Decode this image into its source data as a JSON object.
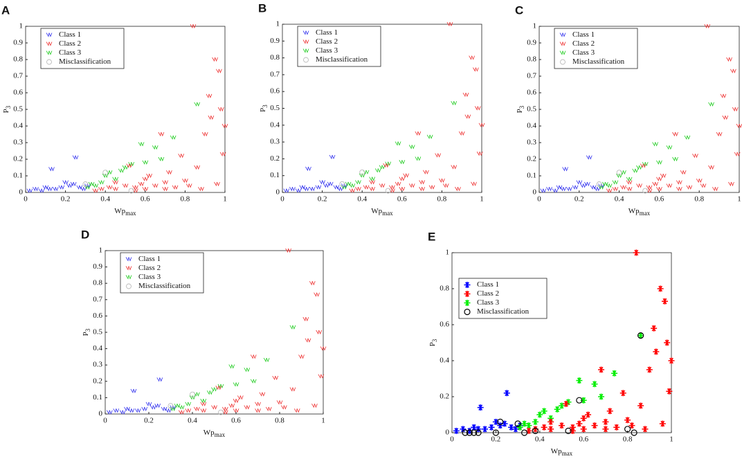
{
  "chart_data": [
    {
      "type": "scatter",
      "panel": "A",
      "xlabel": "Wp",
      "xlabel_sub": "max",
      "ylabel": "P",
      "ylabel_sub": "3",
      "marker": "check",
      "legend": "upper left",
      "xlim": [
        0,
        1
      ],
      "ylim": [
        0,
        1
      ],
      "xticks": [
        0,
        0.2,
        0.4,
        0.6,
        0.8,
        1
      ],
      "yticks": [
        0,
        0.1,
        0.2,
        0.3,
        0.4,
        0.5,
        0.6,
        0.7,
        0.8,
        0.9,
        1
      ],
      "series": [
        {
          "name": "Class 1",
          "color": "#3333ee",
          "x": [
            0.02,
            0.05,
            0.08,
            0.1,
            0.13,
            0.15,
            0.18,
            0.2,
            0.22,
            0.24,
            0.25,
            0.27,
            0.29,
            0.31,
            0.12
          ],
          "values": [
            0.01,
            0.02,
            0.01,
            0.03,
            0.14,
            0.02,
            0.03,
            0.06,
            0.04,
            0.05,
            0.21,
            0.03,
            0.02,
            0.04,
            0.02
          ]
        },
        {
          "name": "Class 2",
          "color": "#ee3333",
          "x": [
            0.35,
            0.38,
            0.42,
            0.45,
            0.5,
            0.52,
            0.55,
            0.58,
            0.6,
            0.62,
            0.65,
            0.68,
            0.7,
            0.72,
            0.75,
            0.78,
            0.8,
            0.82,
            0.84,
            0.86,
            0.88,
            0.9,
            0.92,
            0.93,
            0.95,
            0.97,
            0.98,
            1.0,
            0.99,
            0.96,
            0.7,
            0.6,
            0.45,
            0.55
          ],
          "values": [
            0.01,
            0.02,
            0.03,
            0.02,
            0.04,
            0.16,
            0.03,
            0.05,
            0.02,
            0.1,
            0.04,
            0.35,
            0.06,
            0.12,
            0.03,
            0.22,
            0.07,
            0.04,
            1.0,
            0.15,
            0.02,
            0.35,
            0.58,
            0.45,
            0.8,
            0.73,
            0.5,
            0.4,
            0.23,
            0.05,
            0.02,
            0.08,
            0.06,
            0.01
          ]
        },
        {
          "name": "Class 3",
          "color": "#22cc22",
          "x": [
            0.31,
            0.33,
            0.35,
            0.38,
            0.4,
            0.42,
            0.45,
            0.48,
            0.5,
            0.53,
            0.58,
            0.6,
            0.65,
            0.68,
            0.74,
            0.86
          ],
          "values": [
            0.03,
            0.05,
            0.04,
            0.06,
            0.1,
            0.12,
            0.08,
            0.13,
            0.15,
            0.17,
            0.29,
            0.18,
            0.27,
            0.2,
            0.33,
            0.53
          ]
        },
        {
          "name": "Misclassification",
          "color": "#bbbbbb",
          "x": [
            0.3,
            0.4,
            0.53
          ],
          "values": [
            0.05,
            0.12,
            0.01
          ]
        }
      ]
    },
    {
      "type": "scatter",
      "panel": "B",
      "xlabel": "Wp",
      "xlabel_sub": "max",
      "ylabel": "P",
      "ylabel_sub": "3",
      "marker": "check",
      "legend": "upper left",
      "xlim": [
        0,
        1
      ],
      "ylim": [
        0,
        1
      ],
      "xticks": [
        0,
        0.2,
        0.4,
        0.6,
        0.8,
        1
      ],
      "yticks": [
        0,
        0.1,
        0.2,
        0.3,
        0.4,
        0.5,
        0.6,
        0.7,
        0.8,
        0.9,
        1
      ],
      "series": [
        {
          "name": "Class 1",
          "color": "#3333ee",
          "x": [
            0.02,
            0.05,
            0.08,
            0.1,
            0.13,
            0.15,
            0.18,
            0.2,
            0.22,
            0.24,
            0.25,
            0.27,
            0.29,
            0.31,
            0.12
          ],
          "values": [
            0.01,
            0.02,
            0.01,
            0.03,
            0.14,
            0.02,
            0.03,
            0.06,
            0.04,
            0.05,
            0.21,
            0.03,
            0.02,
            0.04,
            0.02
          ]
        },
        {
          "name": "Class 2",
          "color": "#ee3333",
          "x": [
            0.35,
            0.38,
            0.42,
            0.45,
            0.5,
            0.52,
            0.55,
            0.58,
            0.6,
            0.62,
            0.65,
            0.68,
            0.7,
            0.72,
            0.75,
            0.78,
            0.8,
            0.82,
            0.84,
            0.86,
            0.88,
            0.9,
            0.92,
            0.93,
            0.95,
            0.97,
            0.98,
            1.0,
            0.99,
            0.96,
            0.7,
            0.6,
            0.45,
            0.55
          ],
          "values": [
            0.01,
            0.02,
            0.03,
            0.02,
            0.04,
            0.16,
            0.03,
            0.05,
            0.02,
            0.1,
            0.04,
            0.35,
            0.06,
            0.12,
            0.03,
            0.22,
            0.07,
            0.04,
            1.0,
            0.15,
            0.02,
            0.35,
            0.58,
            0.45,
            0.8,
            0.73,
            0.5,
            0.4,
            0.23,
            0.05,
            0.02,
            0.08,
            0.06,
            0.01
          ]
        },
        {
          "name": "Class 3",
          "color": "#22cc22",
          "x": [
            0.31,
            0.33,
            0.35,
            0.38,
            0.4,
            0.42,
            0.45,
            0.48,
            0.5,
            0.53,
            0.58,
            0.6,
            0.65,
            0.68,
            0.74,
            0.86
          ],
          "values": [
            0.03,
            0.05,
            0.04,
            0.06,
            0.1,
            0.12,
            0.08,
            0.13,
            0.15,
            0.17,
            0.29,
            0.18,
            0.27,
            0.2,
            0.33,
            0.53
          ]
        },
        {
          "name": "Misclassification",
          "color": "#bbbbbb",
          "x": [
            0.3,
            0.4,
            0.53
          ],
          "values": [
            0.05,
            0.12,
            0.01
          ]
        }
      ]
    },
    {
      "type": "scatter",
      "panel": "C",
      "xlabel": "Wp",
      "xlabel_sub": "max",
      "ylabel": "P",
      "ylabel_sub": "3",
      "marker": "check",
      "legend": "upper left",
      "xlim": [
        0,
        1
      ],
      "ylim": [
        0,
        1
      ],
      "xticks": [
        0,
        0.2,
        0.4,
        0.6,
        0.8,
        1
      ],
      "yticks": [
        0,
        0.1,
        0.2,
        0.3,
        0.4,
        0.5,
        0.6,
        0.7,
        0.8,
        0.9,
        1
      ],
      "series": [
        {
          "name": "Class 1",
          "color": "#3333ee",
          "x": [
            0.02,
            0.05,
            0.08,
            0.1,
            0.13,
            0.15,
            0.18,
            0.2,
            0.22,
            0.24,
            0.25,
            0.27,
            0.29,
            0.31,
            0.12
          ],
          "values": [
            0.01,
            0.02,
            0.01,
            0.03,
            0.14,
            0.02,
            0.03,
            0.06,
            0.04,
            0.05,
            0.21,
            0.03,
            0.02,
            0.04,
            0.02
          ]
        },
        {
          "name": "Class 2",
          "color": "#ee3333",
          "x": [
            0.35,
            0.38,
            0.42,
            0.45,
            0.5,
            0.52,
            0.55,
            0.58,
            0.6,
            0.62,
            0.65,
            0.68,
            0.7,
            0.72,
            0.75,
            0.78,
            0.8,
            0.82,
            0.84,
            0.86,
            0.88,
            0.9,
            0.92,
            0.93,
            0.95,
            0.97,
            0.98,
            1.0,
            0.99,
            0.96,
            0.7,
            0.6,
            0.45,
            0.55
          ],
          "values": [
            0.01,
            0.02,
            0.03,
            0.02,
            0.04,
            0.16,
            0.03,
            0.05,
            0.02,
            0.1,
            0.04,
            0.35,
            0.06,
            0.12,
            0.03,
            0.22,
            0.07,
            0.04,
            1.0,
            0.15,
            0.02,
            0.35,
            0.58,
            0.45,
            0.8,
            0.73,
            0.5,
            0.4,
            0.23,
            0.05,
            0.02,
            0.08,
            0.06,
            0.01
          ]
        },
        {
          "name": "Class 3",
          "color": "#22cc22",
          "x": [
            0.31,
            0.33,
            0.35,
            0.38,
            0.4,
            0.42,
            0.45,
            0.48,
            0.5,
            0.53,
            0.58,
            0.6,
            0.65,
            0.68,
            0.74,
            0.86
          ],
          "values": [
            0.03,
            0.05,
            0.04,
            0.06,
            0.1,
            0.12,
            0.08,
            0.13,
            0.15,
            0.17,
            0.29,
            0.18,
            0.27,
            0.2,
            0.33,
            0.53
          ]
        },
        {
          "name": "Misclassification",
          "color": "#bbbbbb",
          "x": [
            0.3,
            0.4,
            0.53
          ],
          "values": [
            0.05,
            0.12,
            0.01
          ]
        }
      ]
    },
    {
      "type": "scatter",
      "panel": "D",
      "xlabel": "Wp",
      "xlabel_sub": "max",
      "ylabel": "P",
      "ylabel_sub": "3",
      "marker": "check",
      "legend": "upper left",
      "xlim": [
        0,
        1
      ],
      "ylim": [
        0,
        1
      ],
      "xticks": [
        0,
        0.2,
        0.4,
        0.6,
        0.8,
        1
      ],
      "yticks": [
        0,
        0.1,
        0.2,
        0.3,
        0.4,
        0.5,
        0.6,
        0.7,
        0.8,
        0.9,
        1
      ],
      "series": [
        {
          "name": "Class 1",
          "color": "#3333ee",
          "x": [
            0.02,
            0.05,
            0.08,
            0.1,
            0.13,
            0.15,
            0.18,
            0.2,
            0.22,
            0.24,
            0.25,
            0.27,
            0.29,
            0.31,
            0.12
          ],
          "values": [
            0.01,
            0.02,
            0.01,
            0.03,
            0.14,
            0.02,
            0.03,
            0.06,
            0.04,
            0.05,
            0.21,
            0.03,
            0.02,
            0.04,
            0.02
          ]
        },
        {
          "name": "Class 2",
          "color": "#ee3333",
          "x": [
            0.35,
            0.38,
            0.42,
            0.45,
            0.5,
            0.52,
            0.55,
            0.58,
            0.6,
            0.62,
            0.65,
            0.68,
            0.7,
            0.72,
            0.75,
            0.78,
            0.8,
            0.82,
            0.84,
            0.86,
            0.88,
            0.9,
            0.92,
            0.93,
            0.95,
            0.97,
            0.98,
            1.0,
            0.99,
            0.96,
            0.7,
            0.6,
            0.45,
            0.55
          ],
          "values": [
            0.01,
            0.02,
            0.03,
            0.02,
            0.04,
            0.16,
            0.03,
            0.05,
            0.02,
            0.1,
            0.04,
            0.35,
            0.06,
            0.12,
            0.03,
            0.22,
            0.07,
            0.04,
            1.0,
            0.15,
            0.02,
            0.35,
            0.58,
            0.45,
            0.8,
            0.73,
            0.5,
            0.4,
            0.23,
            0.05,
            0.02,
            0.08,
            0.06,
            0.01
          ]
        },
        {
          "name": "Class 3",
          "color": "#22cc22",
          "x": [
            0.31,
            0.33,
            0.35,
            0.38,
            0.4,
            0.42,
            0.45,
            0.48,
            0.5,
            0.53,
            0.58,
            0.6,
            0.65,
            0.68,
            0.74,
            0.86
          ],
          "values": [
            0.03,
            0.05,
            0.04,
            0.06,
            0.1,
            0.12,
            0.08,
            0.13,
            0.15,
            0.17,
            0.29,
            0.18,
            0.27,
            0.2,
            0.33,
            0.53
          ]
        },
        {
          "name": "Misclassification",
          "color": "#bbbbbb",
          "x": [
            0.3,
            0.4,
            0.53
          ],
          "values": [
            0.05,
            0.12,
            0.01
          ]
        }
      ]
    },
    {
      "type": "scatter",
      "panel": "E",
      "xlabel": "Wp",
      "xlabel_sub": "max",
      "ylabel": "P",
      "ylabel_sub": "3",
      "marker": "star",
      "legend": "upper left",
      "xlim": [
        0,
        1
      ],
      "ylim": [
        0,
        1
      ],
      "xticks": [
        0,
        0.2,
        0.4,
        0.6,
        0.8,
        1
      ],
      "yticks": [
        0,
        0.2,
        0.4,
        0.6,
        0.8,
        1
      ],
      "series": [
        {
          "name": "Class 1",
          "color": "#0000ff",
          "x": [
            0.02,
            0.05,
            0.08,
            0.1,
            0.13,
            0.15,
            0.18,
            0.2,
            0.22,
            0.24,
            0.25,
            0.27,
            0.29,
            0.31,
            0.12
          ],
          "values": [
            0.01,
            0.02,
            0.01,
            0.03,
            0.14,
            0.02,
            0.03,
            0.06,
            0.04,
            0.05,
            0.22,
            0.03,
            0.02,
            0.04,
            0.02
          ]
        },
        {
          "name": "Class 2",
          "color": "#ff0000",
          "x": [
            0.35,
            0.38,
            0.42,
            0.45,
            0.5,
            0.52,
            0.55,
            0.58,
            0.6,
            0.62,
            0.65,
            0.68,
            0.7,
            0.72,
            0.75,
            0.78,
            0.8,
            0.82,
            0.84,
            0.86,
            0.88,
            0.9,
            0.92,
            0.93,
            0.95,
            0.97,
            0.98,
            1.0,
            0.99,
            0.96,
            0.7,
            0.6,
            0.45,
            0.55
          ],
          "values": [
            0.01,
            0.02,
            0.03,
            0.02,
            0.04,
            0.16,
            0.03,
            0.05,
            0.02,
            0.1,
            0.04,
            0.35,
            0.06,
            0.12,
            0.03,
            0.22,
            0.07,
            0.04,
            1.0,
            0.15,
            0.02,
            0.35,
            0.58,
            0.45,
            0.8,
            0.73,
            0.5,
            0.4,
            0.23,
            0.05,
            0.02,
            0.08,
            0.06,
            0.01
          ]
        },
        {
          "name": "Class 3",
          "color": "#00ee00",
          "x": [
            0.31,
            0.33,
            0.35,
            0.38,
            0.4,
            0.42,
            0.45,
            0.48,
            0.5,
            0.53,
            0.58,
            0.6,
            0.65,
            0.68,
            0.74,
            0.86
          ],
          "values": [
            0.03,
            0.05,
            0.04,
            0.06,
            0.1,
            0.12,
            0.08,
            0.13,
            0.15,
            0.17,
            0.29,
            0.18,
            0.27,
            0.2,
            0.33,
            0.54
          ]
        },
        {
          "name": "Misclassification",
          "color": "#000000",
          "x": [
            0.06,
            0.08,
            0.1,
            0.12,
            0.2,
            0.22,
            0.3,
            0.33,
            0.38,
            0.53,
            0.58,
            0.8,
            0.83,
            0.86
          ],
          "values": [
            0,
            0,
            0,
            0,
            0,
            0.06,
            0.05,
            0,
            0.01,
            0.01,
            0.18,
            0.02,
            0,
            0.54
          ]
        }
      ]
    }
  ]
}
